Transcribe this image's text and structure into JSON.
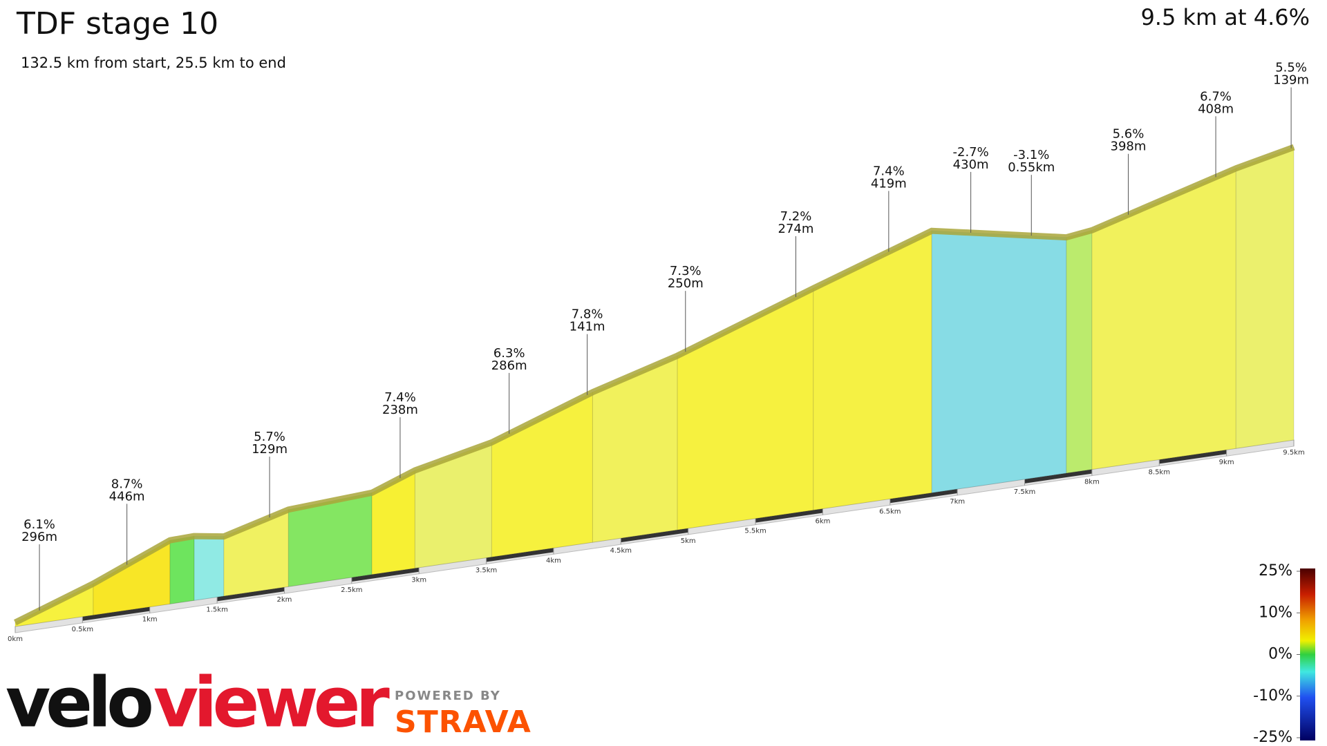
{
  "chart_data": {
    "type": "profile",
    "title": "TDF stage 10",
    "subtitle": "132.5 km from start, 25.5 km to end",
    "summary": "9.5 km at 4.6%",
    "x": [
      0,
      0.58,
      1.15,
      1.33,
      1.55,
      2.03,
      2.65,
      2.97,
      3.54,
      4.29,
      4.92,
      5.93,
      6.81,
      7.81,
      8.0,
      9.07,
      9.5
    ],
    "elevation": [
      6,
      47,
      95,
      96,
      89,
      115,
      122,
      146,
      171,
      224,
      260,
      331,
      391,
      352,
      357,
      418,
      437
    ],
    "xlim": [
      0,
      9.5
    ],
    "xticks": [
      {
        "value": 0,
        "label": "0km"
      },
      {
        "value": 0.5,
        "label": "0.5km"
      },
      {
        "value": 1,
        "label": "1km"
      },
      {
        "value": 1.5,
        "label": "1.5km"
      },
      {
        "value": 2,
        "label": "2km"
      },
      {
        "value": 2.5,
        "label": "2.5km"
      },
      {
        "value": 3,
        "label": "3km"
      },
      {
        "value": 3.5,
        "label": "3.5km"
      },
      {
        "value": 4,
        "label": "4km"
      },
      {
        "value": 4.5,
        "label": "4.5km"
      },
      {
        "value": 5,
        "label": "5km"
      },
      {
        "value": 5.5,
        "label": "5.5km"
      },
      {
        "value": 6,
        "label": "6km"
      },
      {
        "value": 6.5,
        "label": "6.5km"
      },
      {
        "value": 7,
        "label": "7km"
      },
      {
        "value": 7.5,
        "label": "7.5km"
      },
      {
        "value": 8,
        "label": "8km"
      },
      {
        "value": 8.5,
        "label": "8.5km"
      },
      {
        "value": 9,
        "label": "9km"
      },
      {
        "value": 9.5,
        "label": "9.5km"
      }
    ],
    "annotations": [
      {
        "x": 0.18,
        "grade": 6.1,
        "grade_label": "6.1%",
        "length": 296,
        "length_label": "296m"
      },
      {
        "x": 0.83,
        "grade": 8.7,
        "grade_label": "8.7%",
        "length": 446,
        "length_label": "446m"
      },
      {
        "x": 1.89,
        "grade": 5.7,
        "grade_label": "5.7%",
        "length": 129,
        "length_label": "129m"
      },
      {
        "x": 2.86,
        "grade": 7.4,
        "grade_label": "7.4%",
        "length": 238,
        "length_label": "238m"
      },
      {
        "x": 3.67,
        "grade": 6.3,
        "grade_label": "6.3%",
        "length": 286,
        "length_label": "286m"
      },
      {
        "x": 4.25,
        "grade": 7.8,
        "grade_label": "7.8%",
        "length": 141,
        "length_label": "141m"
      },
      {
        "x": 4.98,
        "grade": 7.3,
        "grade_label": "7.3%",
        "length": 250,
        "length_label": "250m"
      },
      {
        "x": 5.8,
        "grade": 7.2,
        "grade_label": "7.2%",
        "length": 274,
        "length_label": "274m"
      },
      {
        "x": 6.49,
        "grade": 7.4,
        "grade_label": "7.4%",
        "length": 419,
        "length_label": "419m"
      },
      {
        "x": 7.1,
        "grade": -2.7,
        "grade_label": "-2.7%",
        "length": 430,
        "length_label": "430m"
      },
      {
        "x": 7.55,
        "grade": -3.1,
        "grade_label": "-3.1%",
        "length": 550,
        "length_label": "0.55km"
      },
      {
        "x": 8.27,
        "grade": 5.6,
        "grade_label": "5.6%",
        "length": 398,
        "length_label": "398m"
      },
      {
        "x": 8.92,
        "grade": 6.7,
        "grade_label": "6.7%",
        "length": 408,
        "length_label": "408m"
      },
      {
        "x": 9.48,
        "grade": 5.5,
        "grade_label": "5.5%",
        "length": 139,
        "length_label": "139m"
      }
    ],
    "colorbar": {
      "ticks": [
        {
          "value": 25,
          "label": "25%"
        },
        {
          "value": 10,
          "label": "10%"
        },
        {
          "value": 0,
          "label": "0%"
        },
        {
          "value": -10,
          "label": "-10%"
        },
        {
          "value": -25,
          "label": "-25%"
        }
      ]
    }
  },
  "branding": {
    "velo": "velo",
    "viewer": "viewer",
    "powered": "POWERED BY",
    "strava": "STRAVA"
  }
}
